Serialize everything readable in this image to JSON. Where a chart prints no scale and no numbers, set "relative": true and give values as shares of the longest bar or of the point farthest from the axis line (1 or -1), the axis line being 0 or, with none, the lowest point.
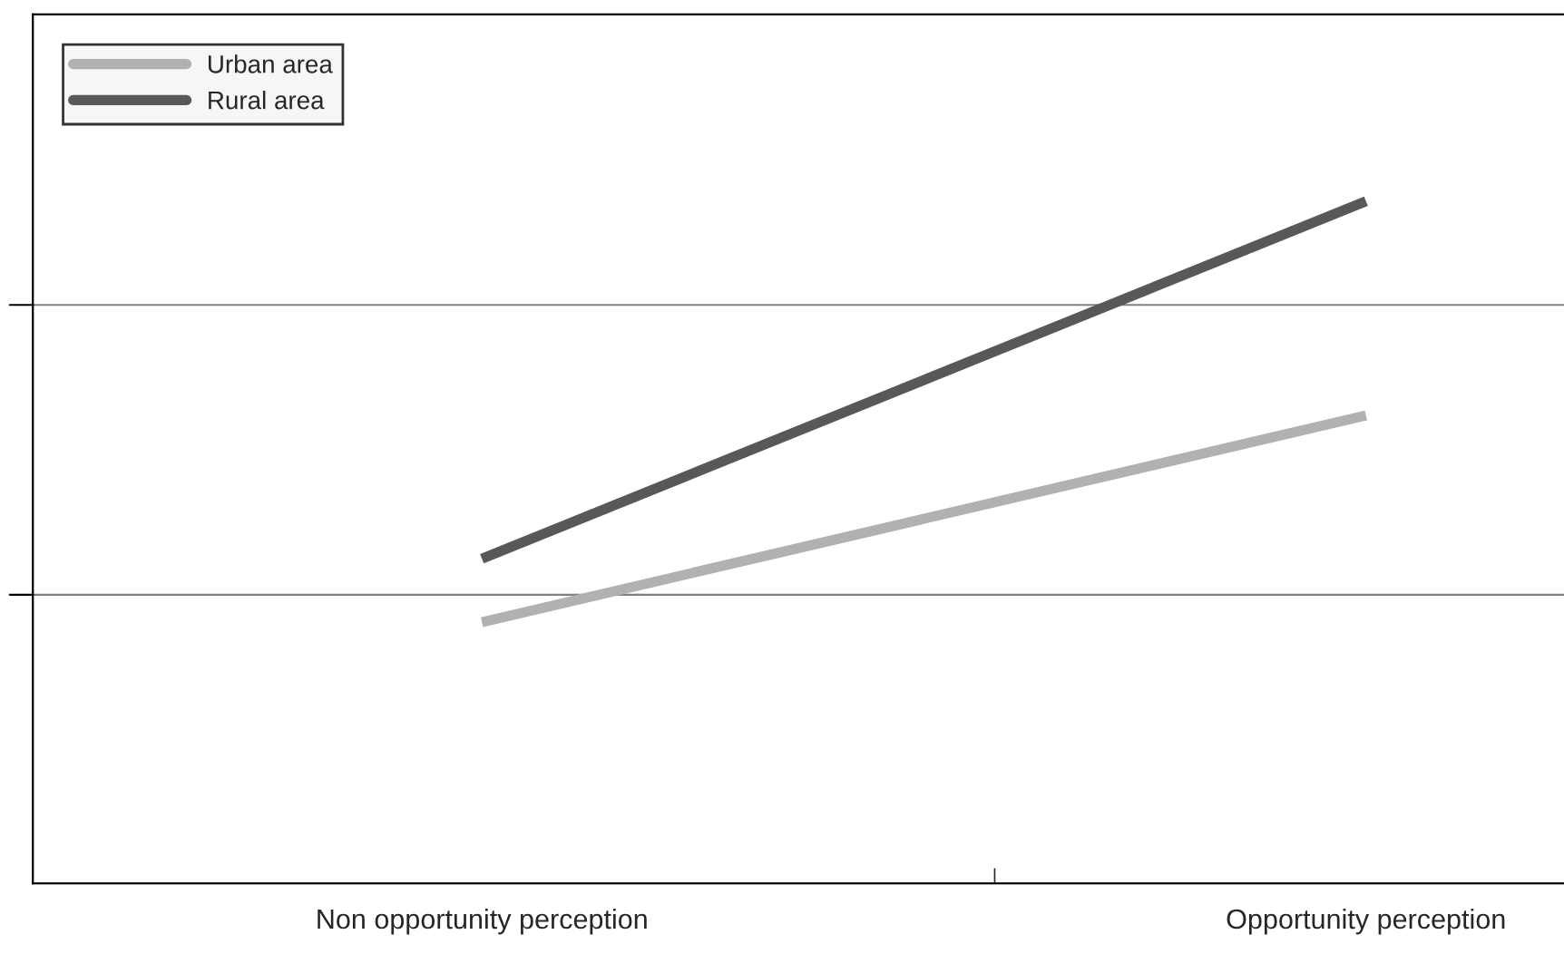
{
  "chart_data": {
    "type": "line",
    "relative": true,
    "categories": [
      "Non opportunity perception",
      "Opportunity perception"
    ],
    "series": [
      {
        "name": "Urban area",
        "color": "#b1b1b3",
        "values": [
          0.383,
          0.686
        ]
      },
      {
        "name": "Rural area",
        "color": "#58585a",
        "values": [
          0.476,
          1.0
        ]
      }
    ],
    "ref_lines": [
      {
        "axis": "y",
        "value": 0.423,
        "color": "#808080"
      },
      {
        "axis": "y",
        "value": 0.848,
        "color": "#808080"
      }
    ],
    "legend": "top left",
    "marker": "none",
    "line_style": "solid"
  }
}
